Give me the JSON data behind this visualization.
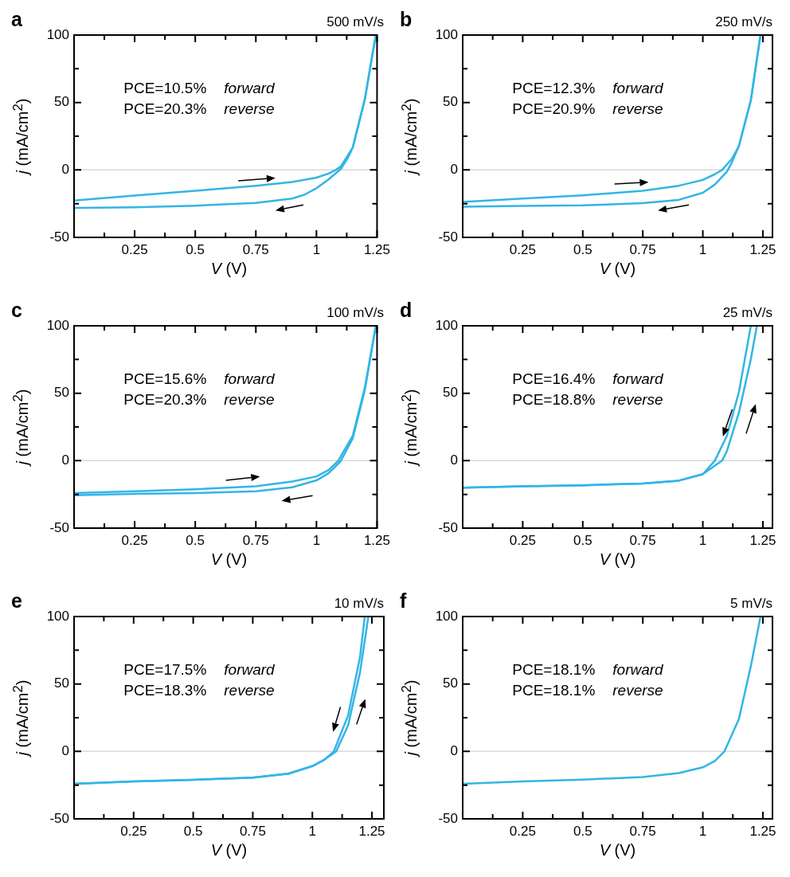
{
  "chart_data": [
    {
      "type": "line",
      "title": "500 mV/s",
      "xlabel": "V (V)",
      "ylabel": "j (mA/cm$^{2}$)",
      "annotations": [
        "a",
        "PCE=10.5%",
        "forward",
        "PCE=20.3%",
        "reverse"
      ],
      "xlim": [
        0,
        1.25
      ],
      "ylim": [
        -50,
        100
      ],
      "xticks": [
        {
          "value": 0.125,
          "label": null
        },
        0.25,
        {
          "value": 0.375,
          "label": null
        },
        0.5,
        {
          "value": 0.625,
          "label": null
        },
        0.75,
        {
          "value": 0.875,
          "label": null
        },
        1,
        {
          "value": 1.125,
          "label": null
        },
        1.25
      ],
      "yticks": [
        -50,
        {
          "value": -25,
          "label": null
        },
        0,
        {
          "value": 25,
          "label": null
        },
        50,
        {
          "value": 75,
          "label": null
        },
        100
      ],
      "grid": false,
      "legend": false,
      "marker": "none",
      "line_style": "solid",
      "ref_lines": [
        {
          "axis": "y",
          "value": 0,
          "color": "#d9d9d9"
        }
      ],
      "series": [
        {
          "color": "#33b5e5",
          "x": [
            0,
            0.25,
            0.5,
            0.75,
            0.9,
            1.0,
            1.05,
            1.08,
            1.1,
            1.15,
            1.2,
            1.23,
            1.245
          ],
          "values": [
            -22.7,
            -19,
            -15.5,
            -11.7,
            -8.9,
            -5.7,
            -2.7,
            0,
            2.5,
            16.7,
            52.7,
            85,
            100
          ]
        },
        {
          "color": "#33b5e5",
          "x": [
            0,
            0.25,
            0.5,
            0.75,
            0.9,
            0.95,
            1.0,
            1.05,
            1.1,
            1.13,
            1.15,
            1.2,
            1.245
          ],
          "values": [
            -28.2,
            -27.7,
            -26.5,
            -24.4,
            -21.2,
            -18.4,
            -13.6,
            -7,
            0.6,
            9,
            16.7,
            52.7,
            100
          ]
        }
      ]
    },
    {
      "type": "line",
      "title": "250 mV/s",
      "xlabel": "V (V)",
      "ylabel": "j (mA/cm$^{2}$)",
      "annotations": [
        "b",
        "PCE=12.3%",
        "forward",
        "PCE=20.9%",
        "reverse"
      ],
      "xlim": [
        0,
        1.29
      ],
      "ylim": [
        -50,
        100
      ],
      "xticks": [
        {
          "value": 0.125,
          "label": null
        },
        0.25,
        {
          "value": 0.375,
          "label": null
        },
        0.5,
        {
          "value": 0.625,
          "label": null
        },
        0.75,
        {
          "value": 0.875,
          "label": null
        },
        1,
        {
          "value": 1.125,
          "label": null
        },
        1.25
      ],
      "yticks": [
        -50,
        {
          "value": -25,
          "label": null
        },
        0,
        {
          "value": 25,
          "label": null
        },
        50,
        {
          "value": 75,
          "label": null
        },
        100
      ],
      "grid": false,
      "legend": false,
      "marker": "none",
      "line_style": "solid",
      "ref_lines": [
        {
          "axis": "y",
          "value": 0,
          "color": "#d9d9d9"
        }
      ],
      "series": [
        {
          "color": "#33b5e5",
          "x": [
            0,
            0.25,
            0.5,
            0.75,
            0.9,
            1.0,
            1.05,
            1.08,
            1.12,
            1.15,
            1.2,
            1.24
          ],
          "values": [
            -23.7,
            -21.2,
            -18.8,
            -15.5,
            -11.7,
            -7.4,
            -3.2,
            0,
            8,
            17.6,
            51.7,
            100
          ]
        },
        {
          "color": "#33b5e5",
          "x": [
            0,
            0.25,
            0.5,
            0.75,
            0.9,
            1.0,
            1.05,
            1.1,
            1.12,
            1.15,
            1.2,
            1.24
          ],
          "values": [
            -27.3,
            -26.7,
            -26.3,
            -24.6,
            -22.2,
            -16.9,
            -10.8,
            -1.3,
            5.3,
            17.6,
            51.7,
            100
          ]
        }
      ]
    },
    {
      "type": "line",
      "title": "100 mV/s",
      "xlabel": "V (V)",
      "ylabel": "j (mA/cm$^{2}$)",
      "annotations": [
        "c",
        "PCE=15.6%",
        "forward",
        "PCE=20.3%",
        "reverse"
      ],
      "xlim": [
        0,
        1.25
      ],
      "ylim": [
        -50,
        100
      ],
      "xticks": [
        {
          "value": 0.125,
          "label": null
        },
        0.25,
        {
          "value": 0.375,
          "label": null
        },
        0.5,
        {
          "value": 0.625,
          "label": null
        },
        0.75,
        {
          "value": 0.875,
          "label": null
        },
        1,
        {
          "value": 1.125,
          "label": null
        },
        1.25
      ],
      "yticks": [
        -50,
        {
          "value": -25,
          "label": null
        },
        0,
        {
          "value": 25,
          "label": null
        },
        50,
        {
          "value": 75,
          "label": null
        },
        100
      ],
      "grid": false,
      "legend": false,
      "marker": "none",
      "line_style": "solid",
      "ref_lines": [
        {
          "axis": "y",
          "value": 0,
          "color": "#d9d9d9"
        }
      ],
      "series": [
        {
          "color": "#33b5e5",
          "x": [
            0,
            0.25,
            0.5,
            0.75,
            0.9,
            1.0,
            1.05,
            1.09,
            1.15,
            1.2,
            1.245
          ],
          "values": [
            -24,
            -22.7,
            -21.2,
            -19,
            -15.5,
            -11.7,
            -7,
            0,
            18.6,
            54.5,
            100
          ]
        },
        {
          "color": "#33b5e5",
          "x": [
            0,
            0.25,
            0.5,
            0.75,
            0.9,
            1.0,
            1.05,
            1.1,
            1.15,
            1.2,
            1.245
          ],
          "values": [
            -25.6,
            -24.6,
            -24,
            -22.7,
            -19.7,
            -14.6,
            -9.3,
            -0.4,
            16.7,
            52.7,
            100
          ]
        }
      ]
    },
    {
      "type": "line",
      "title": "25 mV/s",
      "xlabel": "V (V)",
      "ylabel": "j (mA/cm$^{2}$)",
      "annotations": [
        "d",
        "PCE=16.4%",
        "forward",
        "PCE=18.8%",
        "reverse"
      ],
      "xlim": [
        0,
        1.29
      ],
      "ylim": [
        -50,
        100
      ],
      "xticks": [
        {
          "value": 0.125,
          "label": null
        },
        0.25,
        {
          "value": 0.375,
          "label": null
        },
        0.5,
        {
          "value": 0.625,
          "label": null
        },
        0.75,
        {
          "value": 0.875,
          "label": null
        },
        1,
        {
          "value": 1.125,
          "label": null
        },
        1.25
      ],
      "yticks": [
        -50,
        {
          "value": -25,
          "label": null
        },
        0,
        {
          "value": 25,
          "label": null
        },
        50,
        {
          "value": 75,
          "label": null
        },
        100
      ],
      "grid": false,
      "legend": false,
      "marker": "none",
      "line_style": "solid",
      "ref_lines": [
        {
          "axis": "y",
          "value": 0,
          "color": "#d9d9d9"
        }
      ],
      "series": [
        {
          "color": "#33b5e5",
          "x": [
            0,
            0.25,
            0.5,
            0.75,
            0.9,
            1.0,
            1.08,
            1.1,
            1.15,
            1.2,
            1.225
          ],
          "values": [
            -20,
            -19,
            -18.2,
            -17,
            -14.8,
            -10,
            0,
            7,
            35.5,
            75.3,
            100
          ]
        },
        {
          "color": "#33b5e5",
          "x": [
            0,
            0.25,
            0.5,
            0.75,
            0.9,
            1.0,
            1.05,
            1.1,
            1.15,
            1.2
          ],
          "values": [
            -20,
            -19,
            -18.2,
            -17,
            -14.8,
            -10,
            0,
            18.4,
            50.7,
            100
          ]
        }
      ]
    },
    {
      "type": "line",
      "title": "10 mV/s",
      "xlabel": "V (V)",
      "ylabel": "j (mA/cm$^{2}$)",
      "annotations": [
        "e",
        "PCE=17.5%",
        "forward",
        "PCE=18.3%",
        "reverse"
      ],
      "xlim": [
        0,
        1.3
      ],
      "ylim": [
        -50,
        100
      ],
      "xticks": [
        {
          "value": 0.125,
          "label": null
        },
        0.25,
        {
          "value": 0.375,
          "label": null
        },
        0.5,
        {
          "value": 0.625,
          "label": null
        },
        0.75,
        {
          "value": 0.875,
          "label": null
        },
        1,
        {
          "value": 1.125,
          "label": null
        },
        1.25
      ],
      "yticks": [
        -50,
        {
          "value": -25,
          "label": null
        },
        0,
        {
          "value": 25,
          "label": null
        },
        50,
        {
          "value": 75,
          "label": null
        },
        100
      ],
      "grid": false,
      "legend": false,
      "marker": "none",
      "line_style": "solid",
      "ref_lines": [
        {
          "axis": "y",
          "value": 0,
          "color": "#d9d9d9"
        }
      ],
      "series": [
        {
          "color": "#33b5e5",
          "x": [
            0,
            0.25,
            0.5,
            0.75,
            0.9,
            1.0,
            1.05,
            1.1,
            1.15,
            1.2,
            1.235
          ],
          "values": [
            -24,
            -22.2,
            -21,
            -19.4,
            -16.5,
            -10.9,
            -6.2,
            0,
            19.2,
            58.6,
            100
          ]
        },
        {
          "color": "#33b5e5",
          "x": [
            0,
            0.25,
            0.5,
            0.75,
            0.9,
            1.0,
            1.05,
            1.09,
            1.15,
            1.2,
            1.22
          ],
          "values": [
            -24,
            -22.2,
            -21,
            -19.4,
            -16.5,
            -10.9,
            -6.2,
            0,
            26.7,
            70,
            100
          ]
        }
      ]
    },
    {
      "type": "line",
      "title": "5 mV/s",
      "xlabel": "V (V)",
      "ylabel": "j (mA/cm$^{2}$)",
      "annotations": [
        "f",
        "PCE=18.1%",
        "forward",
        "PCE=18.1%",
        "reverse"
      ],
      "xlim": [
        0,
        1.29
      ],
      "ylim": [
        -50,
        100
      ],
      "xticks": [
        {
          "value": 0.125,
          "label": null
        },
        0.25,
        {
          "value": 0.375,
          "label": null
        },
        0.5,
        {
          "value": 0.625,
          "label": null
        },
        0.75,
        {
          "value": 0.875,
          "label": null
        },
        1,
        {
          "value": 1.125,
          "label": null
        },
        1.25
      ],
      "yticks": [
        -50,
        {
          "value": -25,
          "label": null
        },
        0,
        {
          "value": 25,
          "label": null
        },
        50,
        {
          "value": 75,
          "label": null
        },
        100
      ],
      "grid": false,
      "legend": false,
      "marker": "none",
      "line_style": "solid",
      "ref_lines": [
        {
          "axis": "y",
          "value": 0,
          "color": "#d9d9d9"
        }
      ],
      "series": [
        {
          "color": "#33b5e5",
          "x": [
            0,
            0.25,
            0.5,
            0.75,
            0.9,
            1.0,
            1.05,
            1.09,
            1.15,
            1.2,
            1.24
          ],
          "values": [
            -24,
            -22.2,
            -20.9,
            -19,
            -16,
            -11.8,
            -7.1,
            0,
            23.9,
            63.3,
            100
          ]
        }
      ]
    }
  ]
}
